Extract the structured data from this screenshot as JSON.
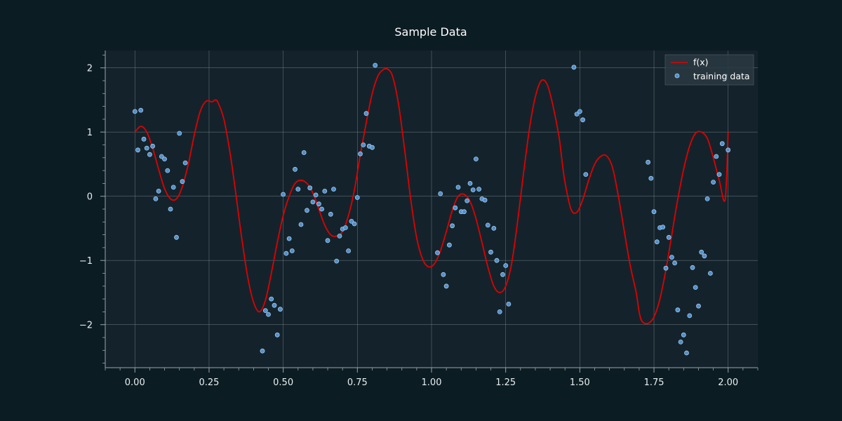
{
  "colors": {
    "background": "#0c1c23",
    "plot_background": "#14232b",
    "grid": "#7f8c93",
    "axis": "#9aa5ab",
    "text": "#e8eef0",
    "line": "#e00000",
    "marker_fill": "#4f8fce",
    "marker_edge": "#a9c9e6"
  },
  "chart_data": {
    "type": "scatter",
    "title": "Sample Data",
    "xlabel": "",
    "ylabel": "",
    "xlim": [
      -0.1,
      2.1
    ],
    "ylim": [
      -2.67,
      2.27
    ],
    "xticks": [
      0.0,
      0.25,
      0.5,
      0.75,
      1.0,
      1.25,
      1.5,
      1.75,
      2.0
    ],
    "xtick_labels": [
      "0.00",
      "0.25",
      "0.50",
      "0.75",
      "1.00",
      "1.25",
      "1.50",
      "1.75",
      "2.00"
    ],
    "yticks": [
      -2,
      -1,
      0,
      1,
      2
    ],
    "ytick_labels": [
      "−2",
      "−1",
      "0",
      "1",
      "2"
    ],
    "grid": true,
    "legend_position": "top-right",
    "legend": [
      {
        "label": "f(x)",
        "kind": "line"
      },
      {
        "label": "training data",
        "kind": "marker"
      }
    ],
    "series": [
      {
        "name": "f(x)",
        "kind": "line",
        "x": [
          0.0,
          0.02,
          0.04,
          0.06,
          0.08,
          0.1,
          0.12,
          0.14,
          0.16,
          0.18,
          0.2,
          0.22,
          0.24,
          0.26,
          0.27,
          0.28,
          0.3,
          0.32,
          0.34,
          0.36,
          0.38,
          0.4,
          0.42,
          0.44,
          0.46,
          0.48,
          0.5,
          0.52,
          0.54,
          0.56,
          0.58,
          0.6,
          0.62,
          0.64,
          0.66,
          0.68,
          0.7,
          0.72,
          0.74,
          0.76,
          0.78,
          0.8,
          0.82,
          0.84,
          0.855,
          0.87,
          0.89,
          0.91,
          0.93,
          0.95,
          0.97,
          0.99,
          1.01,
          1.03,
          1.05,
          1.07,
          1.09,
          1.11,
          1.13,
          1.15,
          1.17,
          1.19,
          1.21,
          1.23,
          1.25,
          1.27,
          1.29,
          1.31,
          1.33,
          1.35,
          1.37,
          1.39,
          1.41,
          1.43,
          1.44,
          1.45,
          1.47,
          1.49,
          1.51,
          1.53,
          1.55,
          1.57,
          1.59,
          1.61,
          1.63,
          1.65,
          1.67,
          1.69,
          1.7,
          1.71,
          1.73,
          1.75,
          1.77,
          1.79,
          1.81,
          1.83,
          1.85,
          1.87,
          1.89,
          1.91,
          1.93,
          1.95,
          1.97,
          1.99,
          2.0
        ],
        "y": [
          1.0,
          1.09,
          1.0,
          0.75,
          0.42,
          0.12,
          -0.04,
          -0.04,
          0.15,
          0.5,
          0.95,
          1.32,
          1.48,
          1.47,
          1.5,
          1.46,
          1.2,
          0.7,
          0.05,
          -0.65,
          -1.25,
          -1.65,
          -1.8,
          -1.62,
          -1.2,
          -0.72,
          -0.3,
          0.0,
          0.2,
          0.25,
          0.2,
          0.05,
          -0.2,
          -0.45,
          -0.6,
          -0.62,
          -0.55,
          -0.3,
          0.1,
          0.65,
          1.15,
          1.6,
          1.88,
          1.98,
          1.97,
          1.85,
          1.4,
          0.7,
          -0.05,
          -0.65,
          -0.98,
          -1.1,
          -1.05,
          -0.85,
          -0.55,
          -0.22,
          0.0,
          0.03,
          -0.08,
          -0.35,
          -0.72,
          -1.1,
          -1.4,
          -1.5,
          -1.4,
          -1.05,
          -0.4,
          0.35,
          1.05,
          1.55,
          1.8,
          1.74,
          1.4,
          0.92,
          0.55,
          0.22,
          -0.2,
          -0.25,
          -0.05,
          0.25,
          0.5,
          0.62,
          0.63,
          0.45,
          0.0,
          -0.55,
          -1.08,
          -1.5,
          -1.8,
          -1.95,
          -1.98,
          -1.88,
          -1.6,
          -1.15,
          -0.6,
          -0.05,
          0.42,
          0.78,
          0.98,
          1.0,
          0.9,
          0.6,
          0.25,
          -0.05,
          1.0
        ]
      },
      {
        "name": "training data",
        "kind": "scatter",
        "x": [
          0.0,
          0.01,
          0.02,
          0.03,
          0.04,
          0.05,
          0.06,
          0.07,
          0.08,
          0.09,
          0.1,
          0.11,
          0.12,
          0.13,
          0.14,
          0.15,
          0.16,
          0.17,
          0.43,
          0.44,
          0.45,
          0.46,
          0.47,
          0.48,
          0.49,
          0.5,
          0.51,
          0.52,
          0.53,
          0.54,
          0.55,
          0.56,
          0.57,
          0.58,
          0.59,
          0.6,
          0.61,
          0.62,
          0.63,
          0.64,
          0.65,
          0.66,
          0.67,
          0.68,
          0.69,
          0.7,
          0.71,
          0.72,
          0.73,
          0.74,
          0.75,
          0.76,
          0.77,
          0.78,
          0.79,
          0.8,
          0.81,
          1.02,
          1.03,
          1.04,
          1.05,
          1.06,
          1.07,
          1.08,
          1.09,
          1.1,
          1.11,
          1.12,
          1.13,
          1.14,
          1.15,
          1.16,
          1.17,
          1.18,
          1.19,
          1.2,
          1.21,
          1.22,
          1.23,
          1.24,
          1.25,
          1.26,
          1.48,
          1.49,
          1.5,
          1.51,
          1.52,
          1.73,
          1.74,
          1.75,
          1.76,
          1.77,
          1.78,
          1.79,
          1.8,
          1.81,
          1.82,
          1.83,
          1.84,
          1.85,
          1.86,
          1.87,
          1.88,
          1.89,
          1.9,
          1.91,
          1.92,
          1.93,
          1.94,
          1.95,
          1.96,
          1.97,
          1.98,
          1.99,
          2.0
        ],
        "y": [
          1.32,
          0.72,
          1.34,
          0.89,
          0.75,
          0.65,
          0.78,
          -0.04,
          0.08,
          0.62,
          0.58,
          0.4,
          -0.2,
          0.14,
          -0.64,
          0.98,
          0.23,
          0.52,
          -2.41,
          -1.78,
          -1.84,
          -1.6,
          -1.7,
          -2.16,
          -1.76,
          0.03,
          -0.89,
          -0.66,
          -0.85,
          0.42,
          0.11,
          -0.44,
          0.68,
          -0.22,
          0.13,
          -0.09,
          0.02,
          -0.12,
          -0.2,
          0.08,
          -0.69,
          -0.28,
          0.11,
          -1.01,
          -0.62,
          -0.51,
          -0.49,
          -0.85,
          -0.39,
          -0.43,
          -0.02,
          0.66,
          0.8,
          1.29,
          0.78,
          0.76,
          2.04,
          -0.88,
          0.04,
          -1.22,
          -1.4,
          -0.76,
          -0.46,
          -0.18,
          0.14,
          -0.24,
          -0.24,
          -0.07,
          0.2,
          0.1,
          0.58,
          0.11,
          -0.04,
          -0.06,
          -0.45,
          -0.87,
          -0.5,
          -1.0,
          -1.8,
          -1.22,
          -1.08,
          -1.68,
          2.01,
          1.28,
          1.32,
          1.19,
          0.34,
          0.53,
          0.28,
          -0.24,
          -0.71,
          -0.49,
          -0.48,
          -1.12,
          -0.64,
          -0.95,
          -1.04,
          -1.77,
          -2.27,
          -2.16,
          -2.44,
          -1.86,
          -1.11,
          -1.42,
          -1.71,
          -0.87,
          -0.93,
          -0.04,
          -1.2,
          0.22,
          0.62,
          0.34,
          0.82,
          1.88,
          0.72
        ]
      }
    ]
  }
}
